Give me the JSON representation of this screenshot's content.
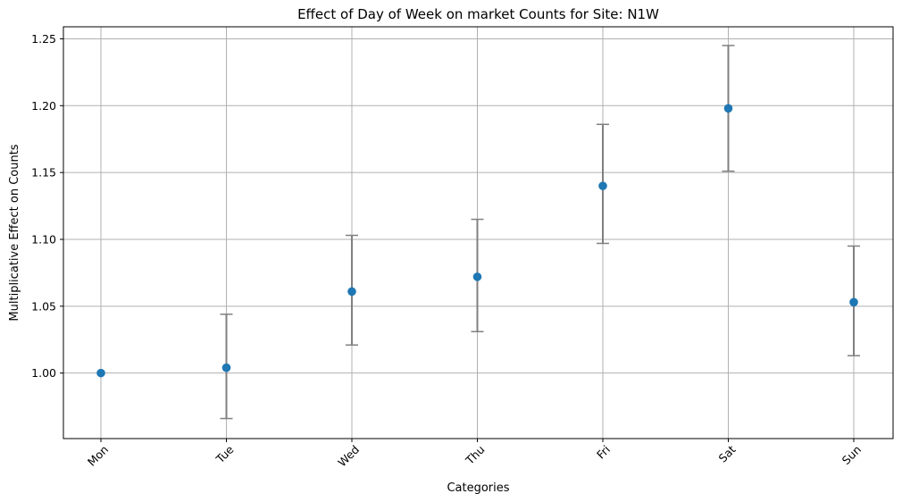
{
  "chart_data": {
    "type": "scatter",
    "title": "Effect of Day of Week on market Counts for Site: N1W",
    "xlabel": "Categories",
    "ylabel": "Multiplicative Effect on Counts",
    "categories": [
      "Mon",
      "Tue",
      "Wed",
      "Thu",
      "Fri",
      "Sat",
      "Sun"
    ],
    "values": [
      1.0,
      1.004,
      1.061,
      1.072,
      1.14,
      1.198,
      1.053
    ],
    "ci_lower": [
      1.0,
      0.966,
      1.021,
      1.031,
      1.097,
      1.151,
      1.013
    ],
    "ci_upper": [
      1.0,
      1.044,
      1.103,
      1.115,
      1.186,
      1.245,
      1.095
    ],
    "ylim": [
      0.951,
      1.259
    ],
    "yticks": [
      1.0,
      1.05,
      1.1,
      1.15,
      1.2,
      1.25
    ],
    "ytick_labels": [
      "1.00",
      "1.05",
      "1.10",
      "1.15",
      "1.20",
      "1.25"
    ],
    "grid": true,
    "x_tick_rotation_deg": 45,
    "colors": {
      "point": "#1f77b4",
      "errorbar": "#808080",
      "grid": "#b0b0b0",
      "axes": "#000000"
    }
  }
}
